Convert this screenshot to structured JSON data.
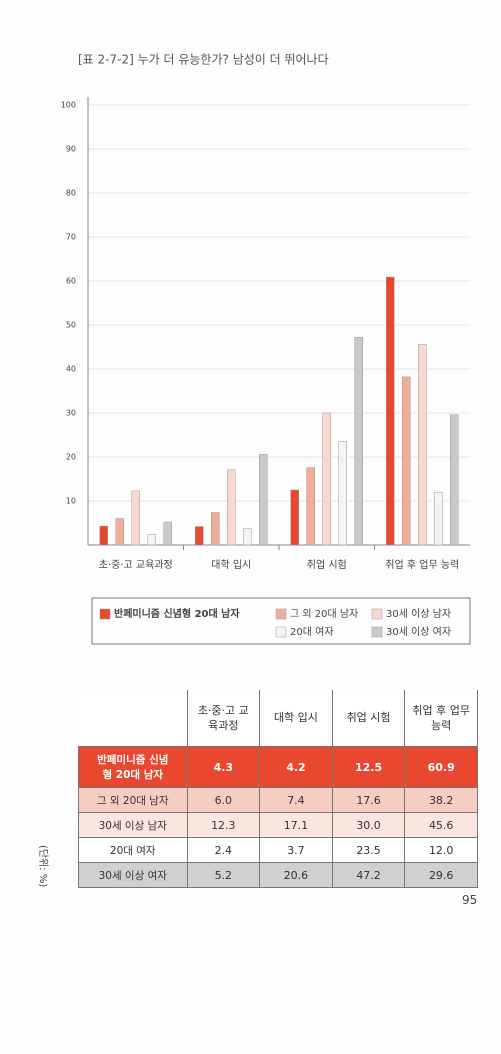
{
  "chart_data": {
    "type": "bar",
    "title": "[표 2-7-2]  누가 더 유능한가? 남성이 더 뛰어나다",
    "categories": [
      "초·중·고 교육과정",
      "대학 입시",
      "취업 시험",
      "취업 후 업무 능력"
    ],
    "series": [
      {
        "name": "반페미니즘 신념형 20대 남자",
        "color": "#e8482f",
        "values": [
          4.3,
          4.2,
          12.5,
          60.9
        ],
        "value_labels": [
          "4.3",
          "4.2",
          "12.5",
          "60.9"
        ]
      },
      {
        "name": "그 외 20대 남자",
        "color": "#f1ad9c",
        "values": [
          6.0,
          7.4,
          17.6,
          38.2
        ],
        "value_labels": [
          "6.0",
          "7.4",
          "17.6",
          "38.2"
        ]
      },
      {
        "name": "30세 이상 남자",
        "color": "#f8d9d1",
        "values": [
          12.3,
          17.1,
          30.0,
          45.6
        ],
        "value_labels": [
          "12.3",
          "17.1",
          "30.0",
          "45.6"
        ]
      },
      {
        "name": "20대 여자",
        "color": "#f4f4f4",
        "values": [
          2.4,
          3.7,
          23.5,
          12.0
        ],
        "value_labels": [
          "2.4",
          "3.7",
          "23.5",
          "12.0"
        ]
      },
      {
        "name": "30세 이상 여자",
        "color": "#c9c9c9",
        "values": [
          5.2,
          20.6,
          47.2,
          29.6
        ],
        "value_labels": [
          "5.2",
          "20.6",
          "47.2",
          "29.6"
        ]
      }
    ],
    "ylim": [
      0,
      100
    ],
    "yticks": [
      10,
      20,
      30,
      40,
      50,
      60,
      70,
      80,
      90,
      100
    ],
    "grid": true,
    "unit_label": "(단위: %)"
  },
  "page_number": "95"
}
